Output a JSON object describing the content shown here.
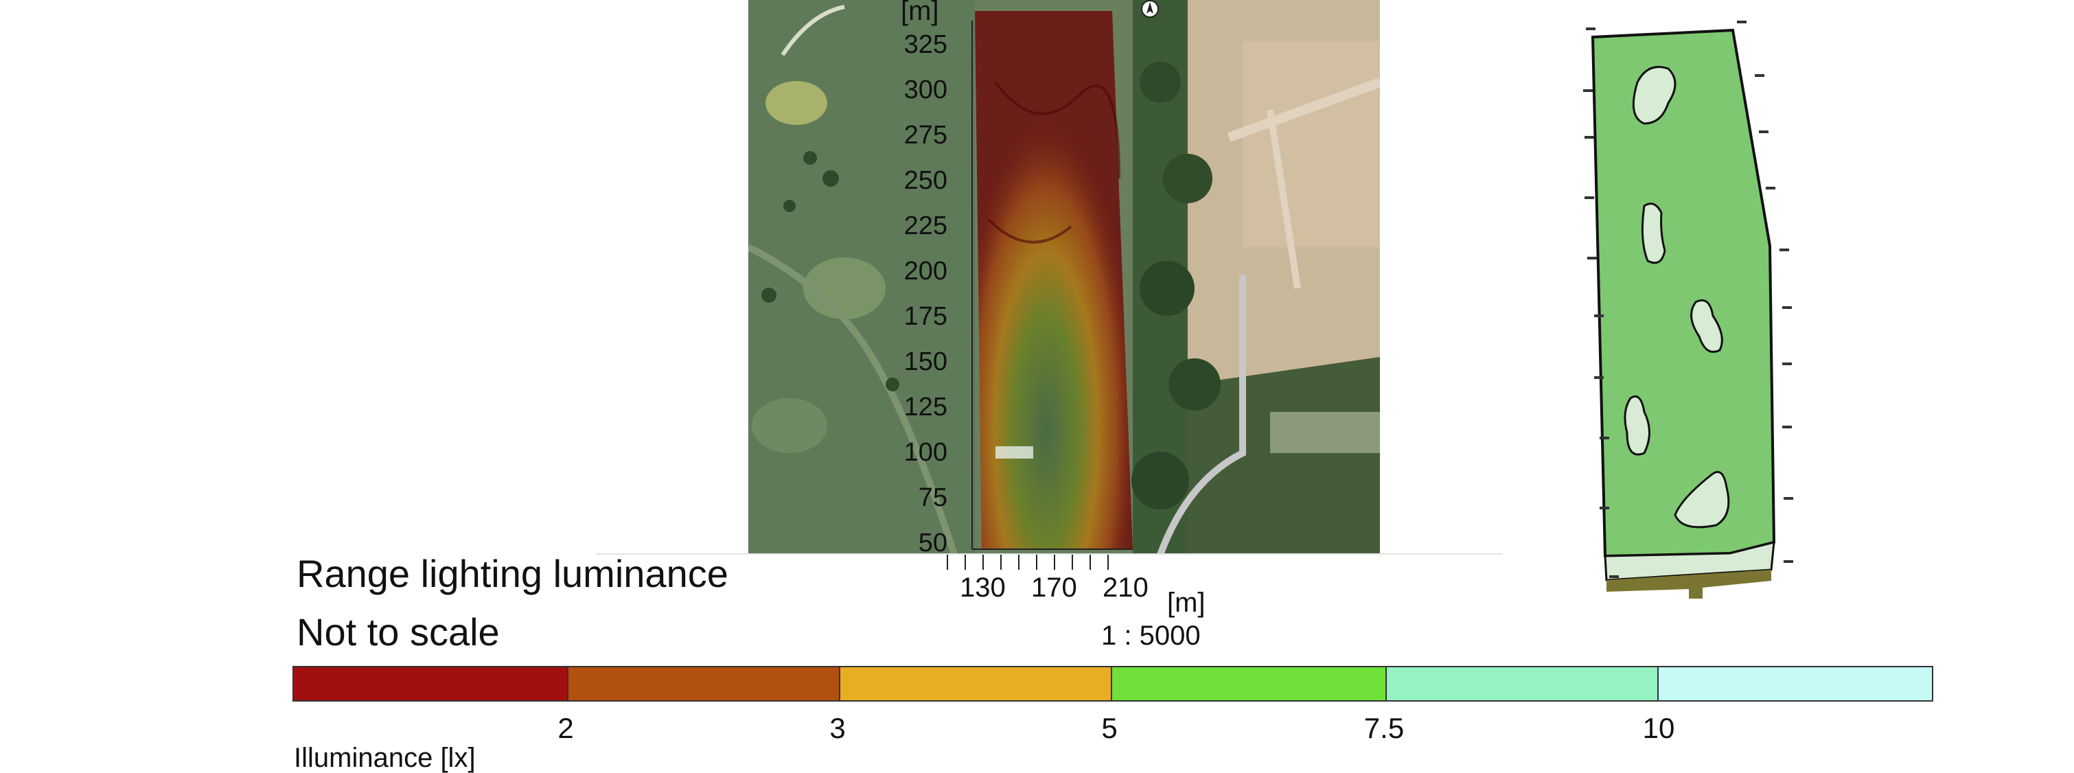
{
  "title": "Range lighting luminance",
  "scale_note": "Not to scale",
  "scale_ratio": "1 : 5000",
  "map": {
    "y_unit": "[m]",
    "x_unit": "[m]",
    "y_ticks": [
      "325",
      "300",
      "275",
      "250",
      "225",
      "200",
      "175",
      "150",
      "125",
      "100",
      "75",
      "50"
    ],
    "x_ticks": [
      "130",
      "170",
      "210"
    ]
  },
  "legend": {
    "unit_label": "Illuminance [lx]",
    "thresholds": [
      "2",
      "3",
      "5",
      "7.5",
      "10"
    ],
    "colors": [
      "#a10f0f",
      "#b2500f",
      "#e8ad23",
      "#6fe13a",
      "#95f2c3",
      "#c5faf6"
    ]
  },
  "plan": {
    "fill_color": "#7dc870",
    "green_color": "#d8ebd4",
    "tee_color": "#7a7530"
  }
}
